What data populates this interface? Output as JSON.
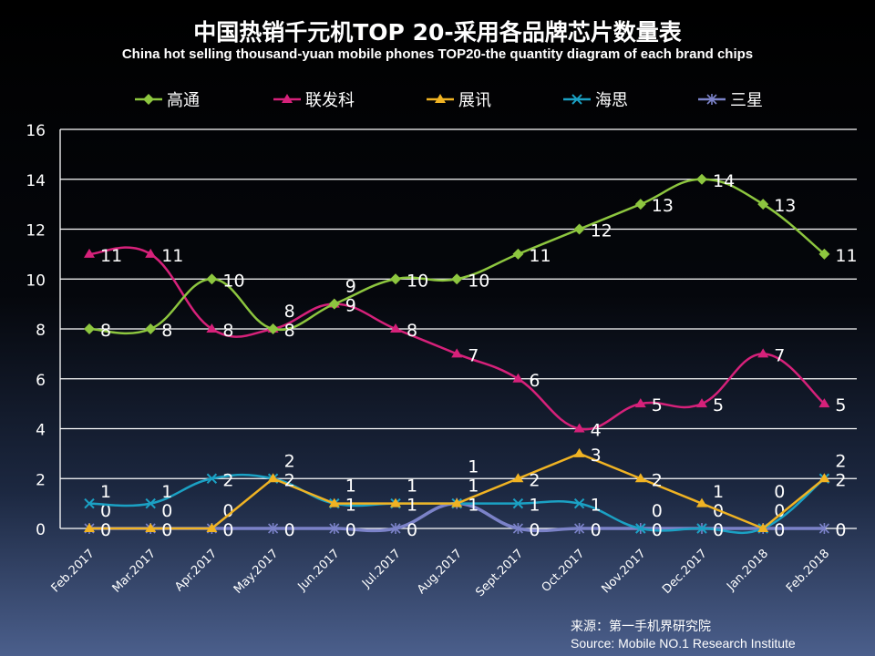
{
  "chart_data": {
    "type": "line",
    "title": "中国热销千元机TOP 20-采用各品牌芯片数量表",
    "subtitle": "China hot selling thousand-yuan mobile phones TOP20-the quantity diagram of each brand chips",
    "categories": [
      "Feb.2017",
      "Mar.2017",
      "Apr.2017",
      "May.2017",
      "Jun.2017",
      "Jul.2017",
      "Aug.2017",
      "Sept.2017",
      "Oct.2017",
      "Nov.2017",
      "Dec.2017",
      "Jan.2018",
      "Feb.2018"
    ],
    "ylim": [
      0,
      16
    ],
    "yticks": [
      0,
      2,
      4,
      6,
      8,
      10,
      12,
      14,
      16
    ],
    "grid": true,
    "legend_position": "top",
    "series": [
      {
        "name": "高通",
        "color": "#8dc63f",
        "marker": "diamond",
        "values": [
          8,
          8,
          10,
          8,
          9,
          10,
          10,
          11,
          12,
          13,
          14,
          13,
          11
        ]
      },
      {
        "name": "联发科",
        "color": "#d6217a",
        "marker": "triangle",
        "values": [
          11,
          11,
          8,
          8,
          9,
          8,
          7,
          6,
          4,
          5,
          5,
          7,
          5
        ]
      },
      {
        "name": "展讯",
        "color": "#f0b323",
        "marker": "triangle",
        "values": [
          0,
          0,
          0,
          2,
          1,
          1,
          1,
          2,
          3,
          2,
          1,
          0,
          2
        ]
      },
      {
        "name": "海思",
        "color": "#1ba1c4",
        "marker": "x",
        "values": [
          1,
          1,
          2,
          2,
          1,
          1,
          1,
          1,
          1,
          0,
          0,
          0,
          2
        ]
      },
      {
        "name": "三星",
        "color": "#7b82c8",
        "marker": "asterisk",
        "values": [
          0,
          0,
          0,
          0,
          0,
          0,
          1,
          0,
          0,
          0,
          0,
          0,
          0
        ]
      }
    ]
  },
  "source": {
    "line1": "来源：第一手机界研究院",
    "line2": "Source: Mobile NO.1 Research Institute"
  }
}
